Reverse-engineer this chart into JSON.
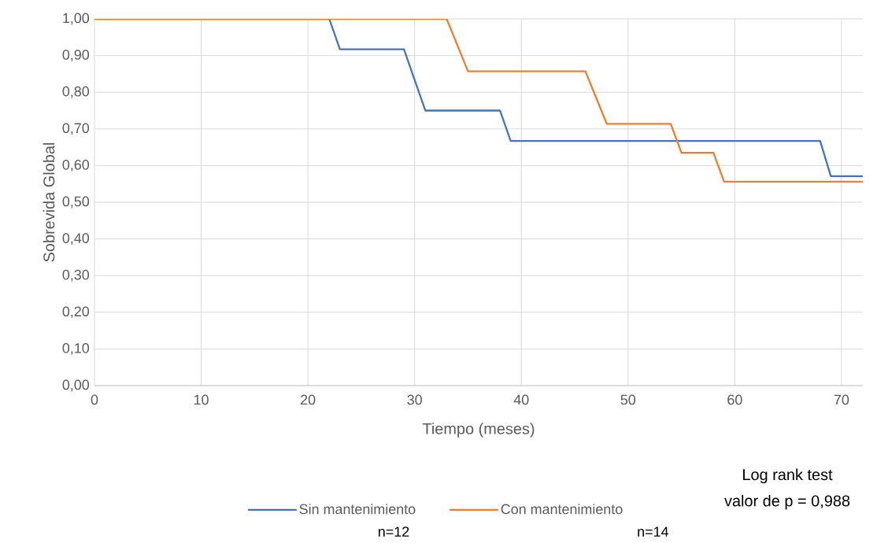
{
  "chart_data": {
    "type": "line",
    "xlabel": "Tiempo (meses)",
    "ylabel": "Sobrevida Global",
    "xlim": [
      0,
      72
    ],
    "xticks": [
      0,
      10,
      20,
      30,
      40,
      50,
      60,
      70
    ],
    "ylim": [
      0,
      1
    ],
    "yticks": [
      {
        "value": 0,
        "label": "0,00"
      },
      {
        "value": 0.1,
        "label": "0,10"
      },
      {
        "value": 0.2,
        "label": "0,20"
      },
      {
        "value": 0.3,
        "label": "0,30"
      },
      {
        "value": 0.4,
        "label": "0,40"
      },
      {
        "value": 0.5,
        "label": "0,50"
      },
      {
        "value": 0.6,
        "label": "0,60"
      },
      {
        "value": 0.7,
        "label": "0,70"
      },
      {
        "value": 0.8,
        "label": "0,80"
      },
      {
        "value": 0.9,
        "label": "0,90"
      },
      {
        "value": 1,
        "label": "1,00"
      }
    ],
    "grid": true,
    "legend": "bottom",
    "series": [
      {
        "name": "Sin mantenimiento",
        "color": "#4472c4",
        "x": [
          0,
          22,
          23,
          29,
          31,
          38,
          39,
          68,
          69,
          72
        ],
        "values": [
          1,
          1,
          0.917,
          0.917,
          0.75,
          0.75,
          0.667,
          0.667,
          0.571,
          0.571
        ]
      },
      {
        "name": "Con mantenimiento",
        "color": "#ed7d31",
        "x": [
          0,
          33,
          35,
          46,
          48,
          54,
          55,
          58,
          59,
          72
        ],
        "values": [
          1,
          1,
          0.857,
          0.857,
          0.714,
          0.714,
          0.635,
          0.635,
          0.556,
          0.556
        ]
      }
    ],
    "annotations": [
      "n=12",
      "n=14",
      "Log rank test",
      "valor de p = 0,988"
    ]
  }
}
